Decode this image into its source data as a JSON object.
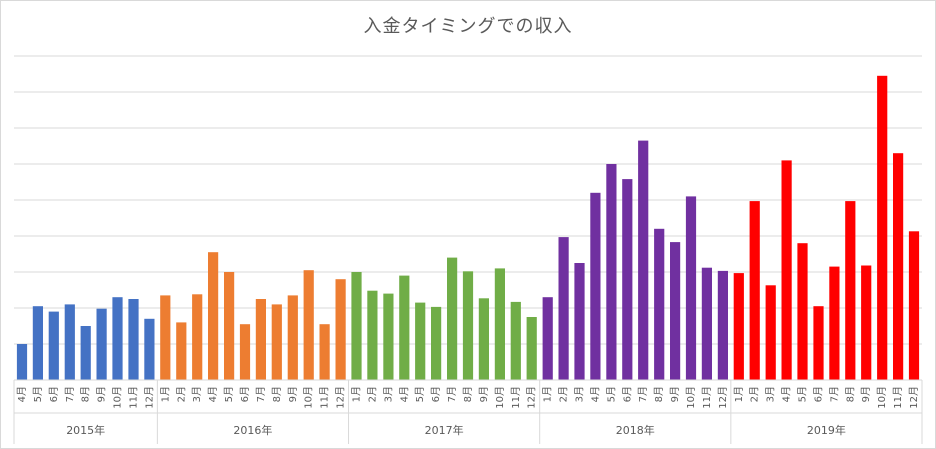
{
  "chart_data": {
    "type": "bar",
    "title": "入金タイミングでの収入",
    "xlabel": "",
    "ylabel": "",
    "y_axis_labels_visible": false,
    "grid": true,
    "legend": "none",
    "ylim": [
      0,
      9
    ],
    "gridline_count": 9,
    "groups": [
      {
        "year": "2015年",
        "color": "#4472C4",
        "categories": [
          "4月",
          "5月",
          "6月",
          "7月",
          "8月",
          "9月",
          "10月",
          "11月",
          "12月"
        ],
        "values": [
          1.0,
          2.05,
          1.9,
          2.1,
          1.5,
          1.98,
          2.3,
          2.25,
          1.7
        ]
      },
      {
        "year": "2016年",
        "color": "#ED7D31",
        "categories": [
          "1月",
          "2月",
          "3月",
          "4月",
          "5月",
          "6月",
          "7月",
          "8月",
          "9月",
          "10月",
          "11月",
          "12月"
        ],
        "values": [
          2.35,
          1.6,
          2.38,
          3.55,
          3.0,
          1.55,
          2.25,
          2.1,
          2.35,
          3.05,
          1.55,
          2.8
        ]
      },
      {
        "year": "2017年",
        "color": "#70AD47",
        "categories": [
          "1月",
          "2月",
          "3月",
          "4月",
          "5月",
          "6月",
          "7月",
          "8月",
          "9月",
          "10月",
          "11月",
          "12月"
        ],
        "values": [
          3.0,
          2.48,
          2.4,
          2.9,
          2.15,
          2.03,
          3.4,
          3.02,
          2.27,
          3.1,
          2.17,
          1.75
        ]
      },
      {
        "year": "2018年",
        "color": "#7030A0",
        "categories": [
          "1月",
          "2月",
          "3月",
          "4月",
          "5月",
          "6月",
          "7月",
          "8月",
          "9月",
          "10月",
          "11月",
          "12月"
        ],
        "values": [
          2.3,
          3.97,
          3.25,
          5.2,
          6.0,
          5.58,
          6.65,
          4.2,
          3.83,
          5.1,
          3.12,
          3.03
        ]
      },
      {
        "year": "2019年",
        "color": "#FF0000",
        "categories": [
          "1月",
          "2月",
          "3月",
          "4月",
          "5月",
          "6月",
          "7月",
          "8月",
          "9月",
          "10月",
          "11月",
          "12月"
        ],
        "values": [
          2.97,
          4.97,
          2.63,
          6.1,
          3.8,
          2.05,
          3.15,
          4.97,
          3.18,
          8.45,
          6.3,
          4.13
        ]
      }
    ]
  }
}
